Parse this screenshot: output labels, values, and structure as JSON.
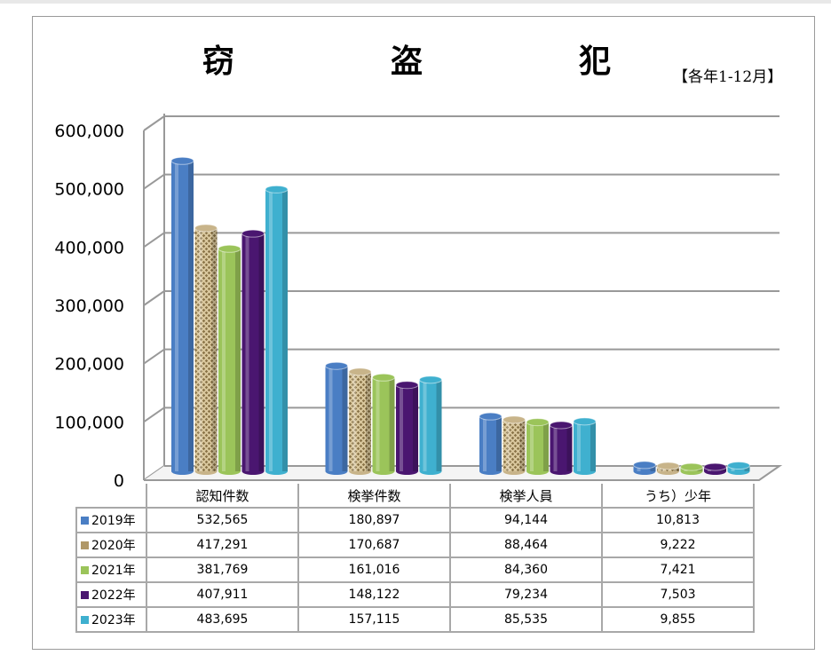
{
  "title": "窃　盗　犯",
  "period": "【各年1-12月】",
  "chart_data": {
    "type": "bar",
    "title": "窃　盗　犯",
    "categories": [
      "認知件数",
      "検挙件数",
      "検挙人員",
      "うち）少年"
    ],
    "ylim": [
      0,
      600000
    ],
    "yticks": [
      "0",
      "100,000",
      "200,000",
      "300,000",
      "400,000",
      "500,000",
      "600,000"
    ],
    "legend": "bottom-table",
    "series": [
      {
        "name": "2019年",
        "color": "#4a7ec4",
        "values": [
          532565,
          180897,
          94144,
          10813
        ],
        "labels": [
          "532,565",
          "180,897",
          "94,144",
          "10,813"
        ]
      },
      {
        "name": "2020年",
        "color": "#c8b48a",
        "values": [
          417291,
          170687,
          88464,
          9222
        ],
        "labels": [
          "417,291",
          "170,687",
          "88,464",
          "9,222"
        ]
      },
      {
        "name": "2021年",
        "color": "#9bc45a",
        "values": [
          381769,
          161016,
          84360,
          7421
        ],
        "labels": [
          "381,769",
          "161,016",
          "84,360",
          "7,421"
        ]
      },
      {
        "name": "2022年",
        "color": "#4a1670",
        "values": [
          407911,
          148122,
          79234,
          7503
        ],
        "labels": [
          "407,911",
          "148,122",
          "79,234",
          "7,503"
        ]
      },
      {
        "name": "2023年",
        "color": "#3fb0cf",
        "values": [
          483695,
          157115,
          85535,
          9855
        ],
        "labels": [
          "483,695",
          "157,115",
          "85,535",
          "9,855"
        ]
      }
    ]
  }
}
